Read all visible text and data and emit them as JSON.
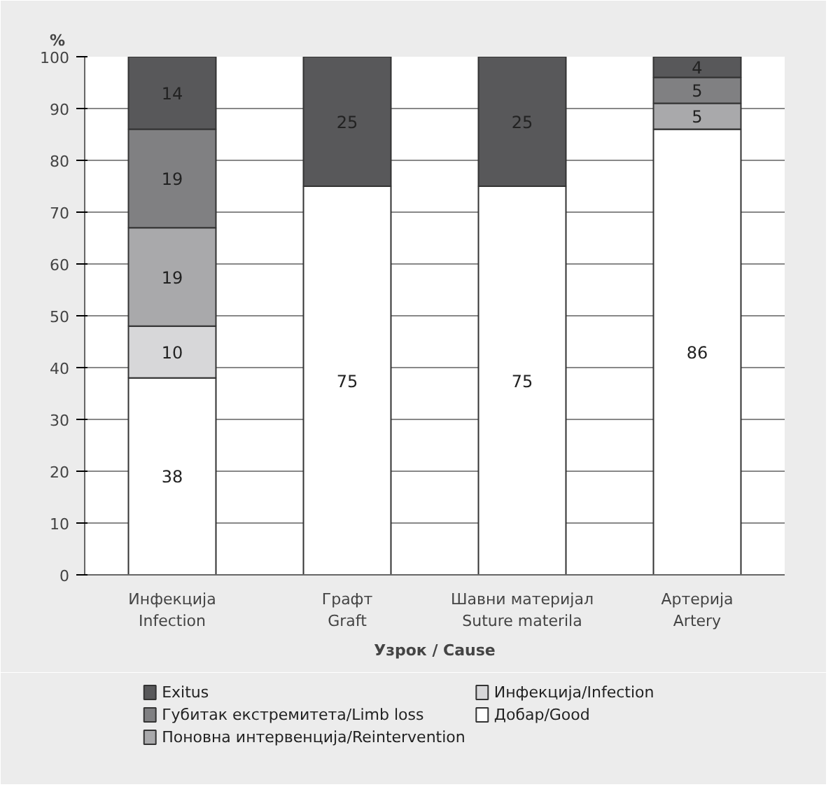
{
  "chart_data": {
    "type": "bar",
    "stacked": true,
    "xlabel": "Узрок / Cause",
    "ylabel": "%",
    "categories": [
      "Инфекција\nInfection",
      "Графт\nGraft",
      "Шавни материјал\nSuture materila",
      "Артерија\nArtery"
    ],
    "series": [
      {
        "name": "Добар/Good",
        "color": "#ffffff",
        "values": [
          38,
          75,
          75,
          86
        ],
        "value_labels": [
          "38",
          "75",
          "75",
          "86"
        ]
      },
      {
        "name": "Инфекција/Infection",
        "color": "#d7d7d9",
        "values": [
          10,
          0,
          0,
          0
        ],
        "value_labels": [
          "10",
          null,
          null,
          null
        ]
      },
      {
        "name": "Поновна интервенција/Reintervention",
        "color": "#a9a9ab",
        "values": [
          19,
          0,
          0,
          5
        ],
        "value_labels": [
          "19",
          null,
          null,
          "5"
        ]
      },
      {
        "name": "Губитак екстремитета/Limb loss",
        "color": "#808082",
        "values": [
          19,
          0,
          0,
          5
        ],
        "value_labels": [
          "19",
          null,
          null,
          "5"
        ]
      },
      {
        "name": "Exitus",
        "color": "#58585a",
        "values": [
          14,
          25,
          25,
          4
        ],
        "value_labels": [
          "14",
          "25",
          "25",
          "4"
        ]
      }
    ],
    "ylim": [
      0,
      100
    ],
    "yticks": [
      0,
      10,
      20,
      30,
      40,
      50,
      60,
      70,
      80,
      90,
      100
    ],
    "grid": "y",
    "legend": "bottom"
  }
}
